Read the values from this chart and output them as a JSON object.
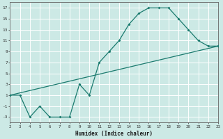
{
  "title": "",
  "xlabel": "Humidex (Indice chaleur)",
  "ylabel": "",
  "bg_color": "#cce9e5",
  "grid_color": "#ffffff",
  "line_color": "#1a7a6e",
  "xlim": [
    2,
    23
  ],
  "ylim": [
    -4,
    18
  ],
  "xticks": [
    2,
    3,
    4,
    5,
    6,
    7,
    8,
    9,
    10,
    11,
    12,
    13,
    14,
    15,
    16,
    17,
    18,
    19,
    20,
    21,
    22,
    23
  ],
  "yticks": [
    -3,
    -1,
    1,
    3,
    5,
    7,
    9,
    11,
    13,
    15,
    17
  ],
  "line1_x": [
    2,
    3,
    4,
    5,
    6,
    7,
    8,
    9,
    10,
    11,
    12,
    13,
    14,
    15,
    16,
    17,
    18,
    19,
    20,
    21,
    22,
    23
  ],
  "line1_y": [
    1,
    1,
    -3,
    -1,
    -3,
    -3,
    -3,
    3,
    1,
    7,
    9,
    11,
    14,
    16,
    17,
    17,
    17,
    15,
    13,
    11,
    10,
    10
  ],
  "line2_x": [
    2,
    23
  ],
  "line2_y": [
    1,
    10
  ],
  "font_family": "monospace"
}
